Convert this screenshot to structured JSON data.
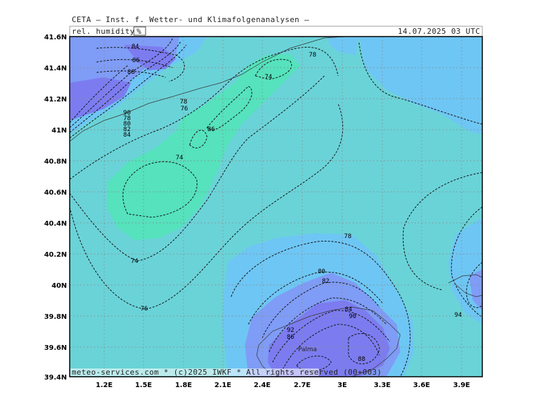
{
  "header": {
    "source": "CETA — Inst. f. Wetter- und Klimafolgenanalysen —",
    "parameter_label": "rel. humidity",
    "unit": "%",
    "datetime": "14.07.2025 03 UTC"
  },
  "footer": {
    "credit": "meteo-services.com * (c)2025 IWKF * All rights reserved (00+003)"
  },
  "place_labels": {
    "palma": "Palma"
  },
  "axes": {
    "lat_ticks": [
      "41.6N",
      "41.4N",
      "41.2N",
      "41N",
      "40.8N",
      "40.6N",
      "40.4N",
      "40.2N",
      "40N",
      "39.8N",
      "39.6N",
      "39.4N"
    ],
    "lon_ticks": [
      "1.2E",
      "1.5E",
      "1.8E",
      "2.1E",
      "2.4E",
      "2.7E",
      "3E",
      "3.3E",
      "3.6E",
      "3.9E"
    ]
  },
  "contour_labels": [
    "84",
    "86",
    "88",
    "78",
    "74",
    "90",
    "78",
    "76",
    "80",
    "82",
    "84",
    "86",
    "74",
    "74",
    "76",
    "78",
    "80",
    "82",
    "84",
    "90",
    "92",
    "86",
    "88",
    "94",
    "78"
  ],
  "colors": {
    "base": "#6ad3d8",
    "green": "#55e2bc",
    "light_blue": "#6ec6f4",
    "blue": "#7f9cf6",
    "dark_blue": "#7c7cf0"
  }
}
